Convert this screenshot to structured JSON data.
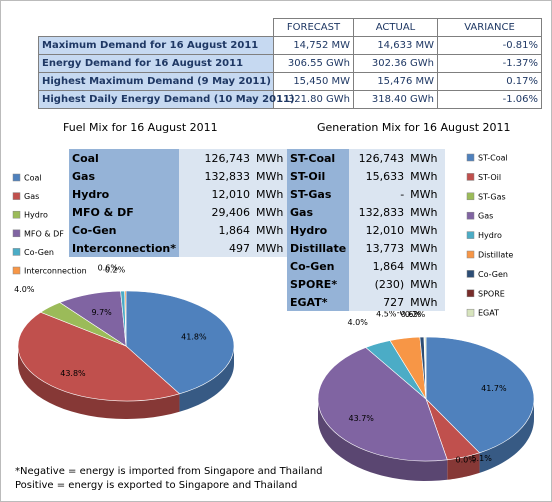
{
  "summary_table": {
    "columns": [
      "FORECAST",
      "ACTUAL",
      "VARIANCE"
    ],
    "rows": [
      [
        "Maximum Demand for 16 August 2011",
        "14,752 MW",
        "14,633 MW",
        "-0.81%"
      ],
      [
        "Energy Demand for 16 August 2011",
        "306.55 GWh",
        "302.36 GWh",
        "-1.37%"
      ],
      [
        "Highest Maximum Demand (9 May 2011)",
        "15,450 MW",
        "15,476 MW",
        "0.17%"
      ],
      [
        "Highest Daily Energy Demand (10 May 2011)",
        "321.80 GWh",
        "318.40 GWh",
        "-1.06%"
      ]
    ]
  },
  "fuel_mix_table": {
    "rows": [
      [
        "Coal",
        "126,743",
        "MWh"
      ],
      [
        "Gas",
        "132,833",
        "MWh"
      ],
      [
        "Hydro",
        "12,010",
        "MWh"
      ],
      [
        "MFO & DF",
        "29,406",
        "MWh"
      ],
      [
        "Co-Gen",
        "1,864",
        "MWh"
      ],
      [
        "Interconnection*",
        "497",
        "MWh"
      ]
    ]
  },
  "generation_mix_table": {
    "rows": [
      [
        "ST-Coal",
        "126,743",
        "MWh"
      ],
      [
        "ST-Oil",
        "15,633",
        "MWh"
      ],
      [
        "ST-Gas",
        "-",
        "MWh"
      ],
      [
        "Gas",
        "132,833",
        "MWh"
      ],
      [
        "Hydro",
        "12,010",
        "MWh"
      ],
      [
        "Distillate",
        "13,773",
        "MWh"
      ],
      [
        "Co-Gen",
        "1,864",
        "MWh"
      ],
      [
        "SPORE*",
        "(230)",
        "MWh"
      ],
      [
        "EGAT*",
        "727",
        "MWh"
      ]
    ]
  },
  "chart_data": [
    {
      "type": "pie",
      "title": "Fuel Mix for 16 August 2011",
      "categories": [
        "Coal",
        "Gas",
        "Hydro",
        "MFO & DF",
        "Co-Gen",
        "Interconnection"
      ],
      "values": [
        41.8,
        43.8,
        4.0,
        9.7,
        0.6,
        0.2
      ],
      "value_labels": [
        "41.8%",
        "43.8%",
        "4.0%",
        "9.7%",
        "0.6%",
        "0.2%"
      ],
      "colors": [
        "#4f81bd",
        "#c0504d",
        "#9bbb59",
        "#8064a2",
        "#4bacc6",
        "#f79646"
      ]
    },
    {
      "type": "pie",
      "title": "Generation Mix for 16 August 2011",
      "categories": [
        "ST-Coal",
        "ST-Oil",
        "ST-Gas",
        "Gas",
        "Hydro",
        "Distillate",
        "Co-Gen",
        "SPORE",
        "EGAT"
      ],
      "values": [
        41.7,
        5.1,
        0.0,
        43.7,
        4.0,
        4.5,
        0.6,
        -0.1,
        0.2
      ],
      "value_labels": [
        "41.7%",
        "5.1%",
        "0.0%",
        "43.7%",
        "4.0%",
        "4.5%",
        "0.6%",
        "-0.1%",
        "0.2%"
      ],
      "colors": [
        "#4f81bd",
        "#c0504d",
        "#9bbb59",
        "#8064a2",
        "#4bacc6",
        "#f79646",
        "#2c4d75",
        "#772c2a",
        "#d7e4bd"
      ]
    }
  ],
  "footnote": [
    "*Negative = energy is imported from Singapore and Thailand",
    "Positive = energy is exported to Singapore and Thailand"
  ]
}
